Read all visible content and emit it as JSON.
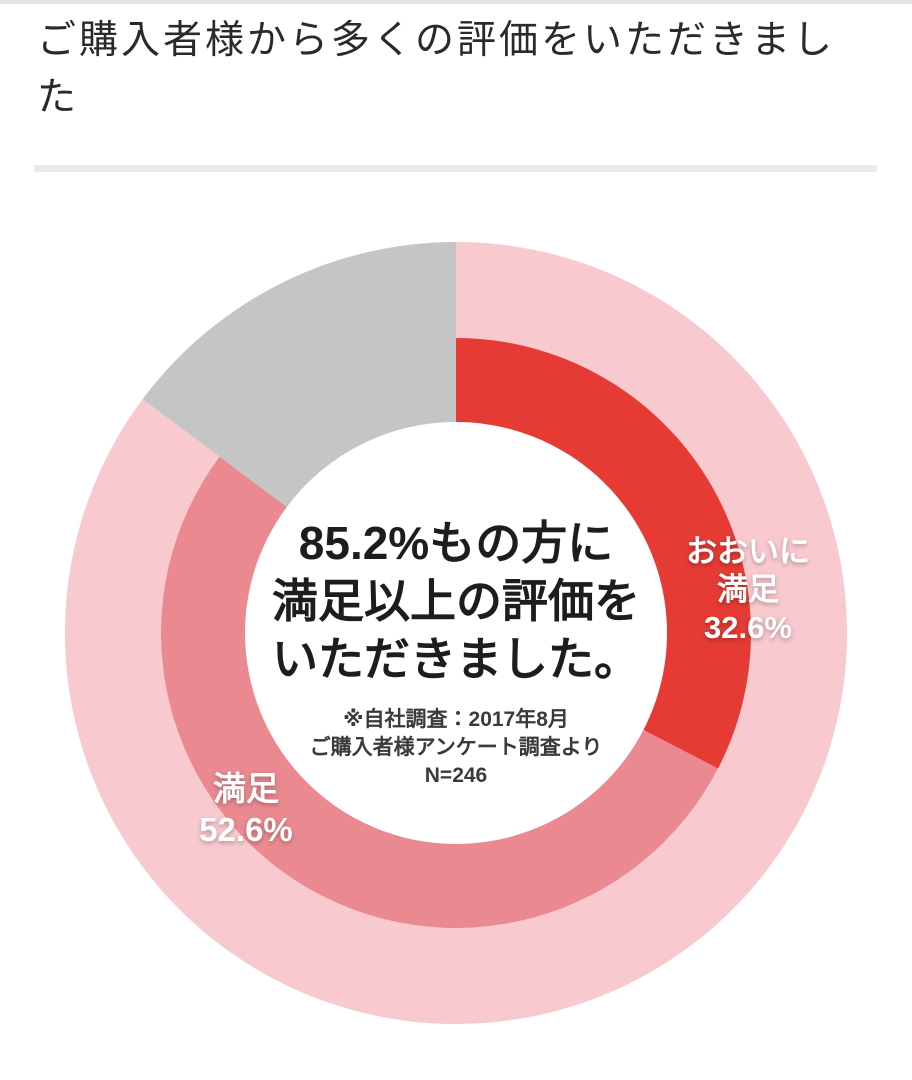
{
  "page": {
    "title": "ご購入者様から多くの評価をいただきました"
  },
  "chart_data": {
    "type": "donut",
    "title": "ご購入者様から多くの評価をいただきました",
    "start_angle_deg": 0,
    "direction": "clockwise",
    "unit": "%",
    "sample_size": "N=246",
    "segments": [
      {
        "name": "おおいに満足",
        "value": 32.6,
        "value_label": "32.6%",
        "color": "#e53b34",
        "label_lines": [
          "おおいに",
          "満足"
        ]
      },
      {
        "name": "満足",
        "value": 52.6,
        "value_label": "52.6%",
        "color": "#ea8a90",
        "label_lines": [
          "満足"
        ]
      },
      {
        "name": "",
        "value": 14.8,
        "value_label": "",
        "color": "#c5c5c5",
        "label_lines": []
      }
    ],
    "outer_ring": {
      "highlight_value": 85.2,
      "highlight_color": "#f8c9ce",
      "remainder_color": "#c5c5c5"
    },
    "center_text": {
      "lines": [
        "85.2%もの方に",
        "満足以上の評価を",
        "いただきました。"
      ],
      "note_lines": [
        "※自社調査：2017年8月",
        "ご購入者様アンケート調査より",
        "N=246"
      ]
    }
  }
}
